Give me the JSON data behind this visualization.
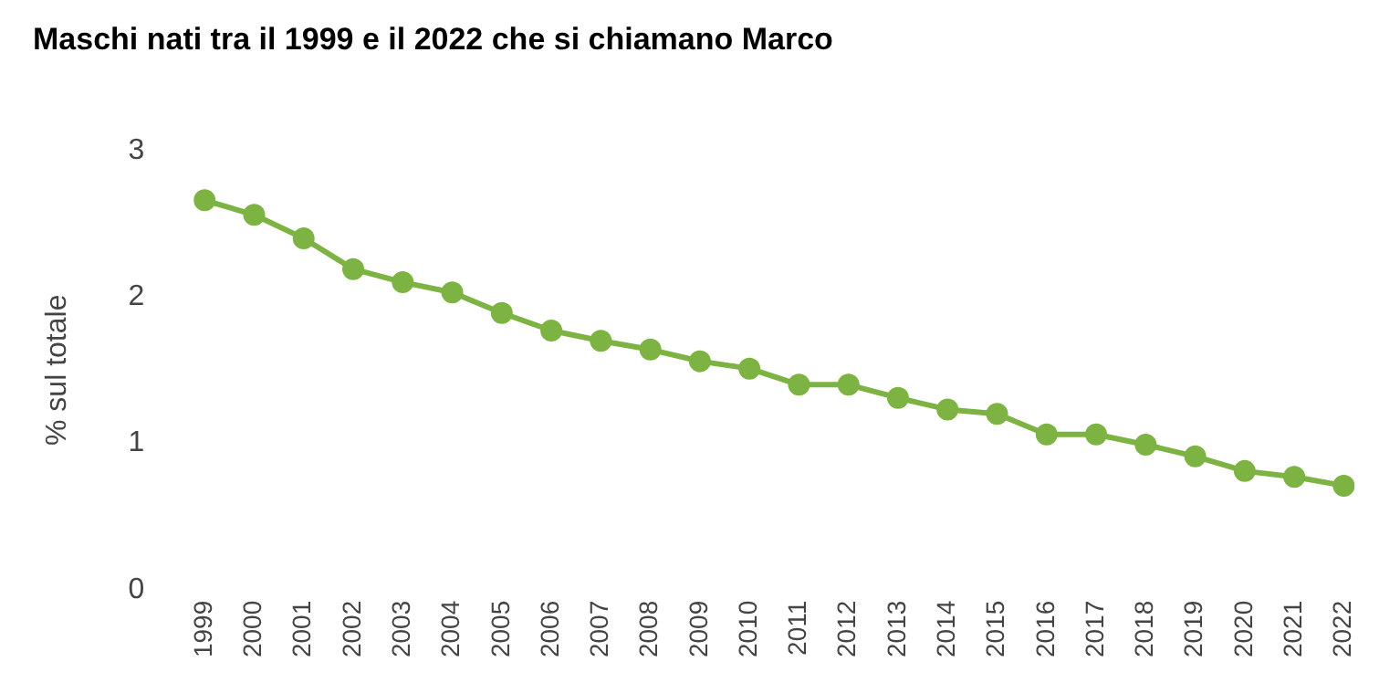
{
  "chart_data": {
    "type": "line",
    "title": "Maschi nati tra il 1999 e il 2022 che si chiamano Marco",
    "ylabel": "% sul totale",
    "categories": [
      "1999",
      "2000",
      "2001",
      "2002",
      "2003",
      "2004",
      "2005",
      "2006",
      "2007",
      "2008",
      "2009",
      "2010",
      "2011",
      "2012",
      "2013",
      "2014",
      "2015",
      "2016",
      "2017",
      "2018",
      "2019",
      "2020",
      "2021",
      "2022"
    ],
    "series": [
      {
        "color": "#7cb342",
        "values": [
          2.66,
          2.56,
          2.4,
          2.19,
          2.1,
          2.03,
          1.89,
          1.77,
          1.7,
          1.64,
          1.56,
          1.51,
          1.4,
          1.4,
          1.31,
          1.23,
          1.2,
          1.06,
          1.06,
          0.99,
          0.91,
          0.81,
          0.77,
          0.71
        ]
      }
    ],
    "ylim": [
      0,
      3
    ],
    "yticks": [
      0,
      1,
      2,
      3
    ],
    "grid": false,
    "legend": false,
    "marker": "circle",
    "line_style": "solid"
  }
}
